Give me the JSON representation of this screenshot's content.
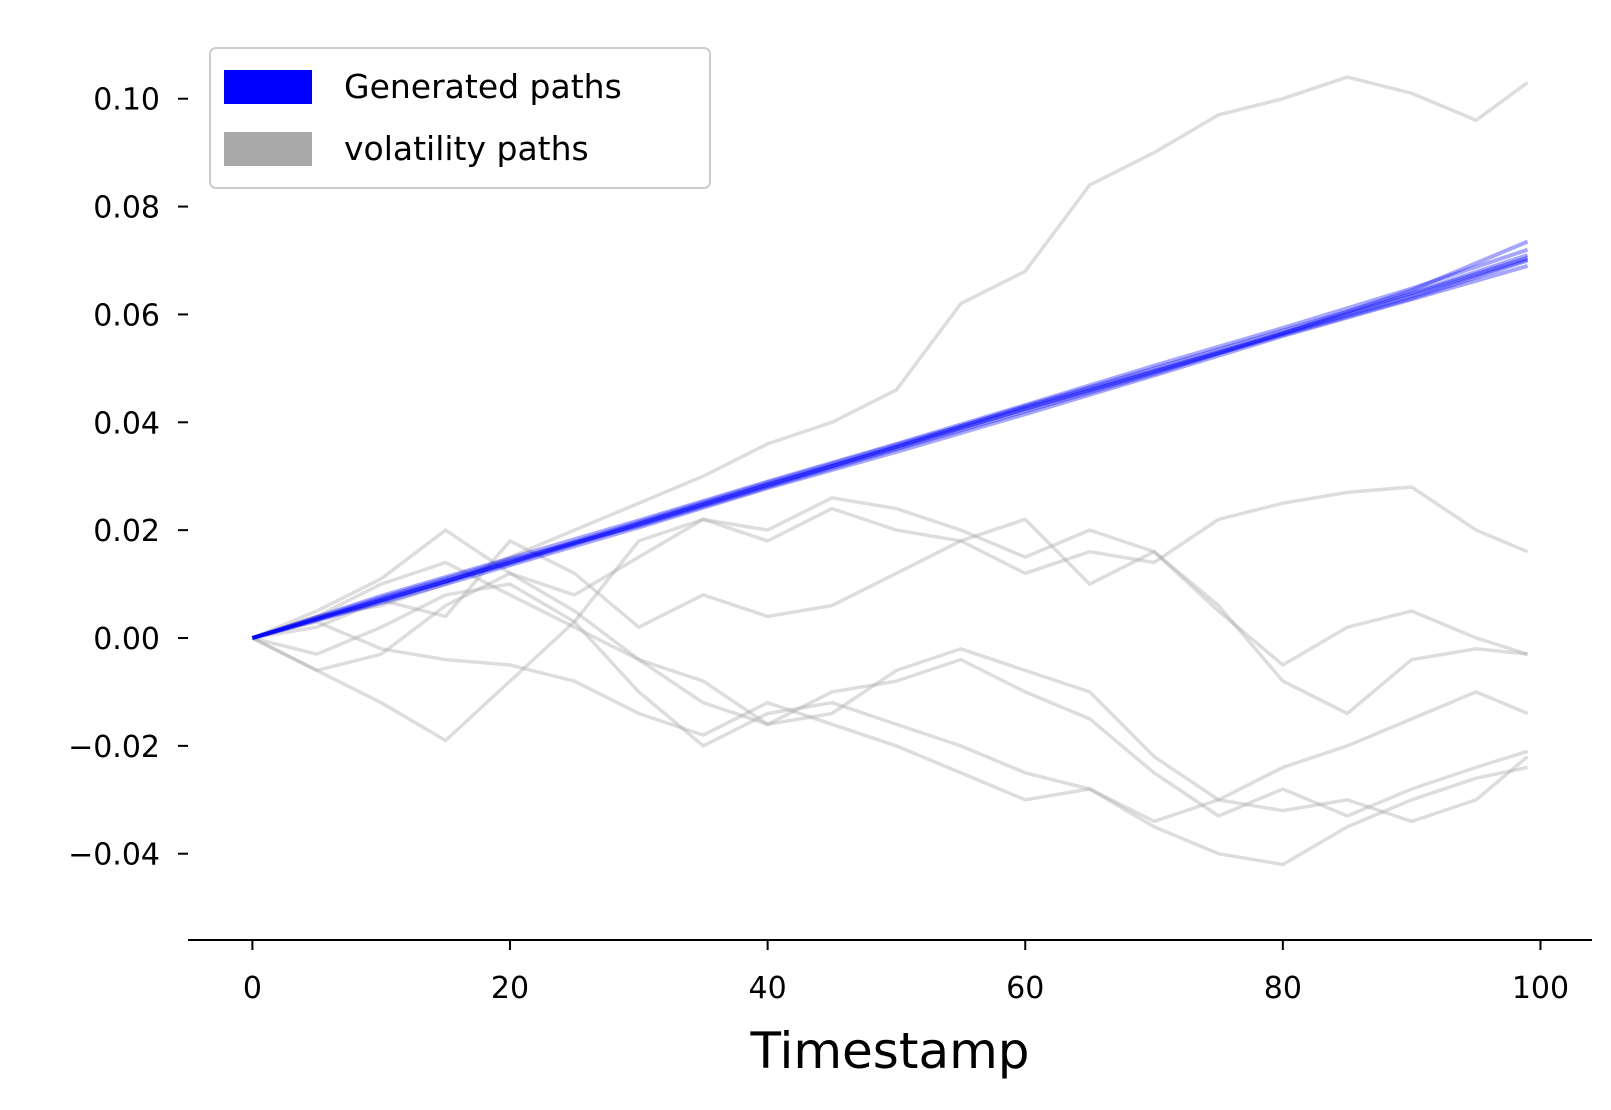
{
  "chart_data": {
    "type": "line",
    "title": "",
    "xlabel": "Timestamp",
    "ylabel": "",
    "xlim": [
      -5,
      104
    ],
    "ylim": [
      -0.056,
      0.112
    ],
    "xticks": [
      0,
      20,
      40,
      60,
      80,
      100
    ],
    "xtick_labels": [
      "0",
      "20",
      "40",
      "60",
      "80",
      "100"
    ],
    "yticks": [
      -0.04,
      -0.02,
      0.0,
      0.02,
      0.04,
      0.06,
      0.08,
      0.1
    ],
    "ytick_labels": [
      "−0.04",
      "−0.02",
      "0.00",
      "0.02",
      "0.04",
      "0.06",
      "0.08",
      "0.10"
    ],
    "grid": false,
    "legend": {
      "position": "top-left",
      "entries": [
        {
          "label": "Generated paths",
          "color": "#0000ff"
        },
        {
          "label": "volatility paths",
          "color": "#a9a9a9"
        }
      ]
    },
    "colors": {
      "generated": "#0000ff",
      "volatility": "#a9a9a9"
    },
    "generated_paths": [
      {
        "x": [
          0,
          10,
          20,
          30,
          40,
          50,
          60,
          70,
          80,
          90,
          99
        ],
        "y": [
          0,
          0.0072,
          0.014,
          0.0212,
          0.0285,
          0.0352,
          0.0425,
          0.0493,
          0.0562,
          0.063,
          0.07
        ]
      },
      {
        "x": [
          0,
          10,
          20,
          30,
          40,
          50,
          60,
          70,
          80,
          90,
          99
        ],
        "y": [
          0,
          0.0065,
          0.0135,
          0.0205,
          0.0278,
          0.0345,
          0.0415,
          0.0487,
          0.056,
          0.0628,
          0.069
        ]
      },
      {
        "x": [
          0,
          10,
          20,
          30,
          40,
          50,
          60,
          70,
          80,
          90,
          99
        ],
        "y": [
          0,
          0.0078,
          0.0148,
          0.0218,
          0.029,
          0.036,
          0.0432,
          0.0505,
          0.0575,
          0.0648,
          0.072
        ]
      },
      {
        "x": [
          0,
          10,
          20,
          30,
          40,
          50,
          60,
          70,
          80,
          90,
          99
        ],
        "y": [
          0,
          0.007,
          0.0138,
          0.021,
          0.0282,
          0.0355,
          0.043,
          0.05,
          0.057,
          0.064,
          0.071
        ]
      },
      {
        "x": [
          0,
          10,
          20,
          30,
          40,
          50,
          60,
          70,
          80,
          90,
          99
        ],
        "y": [
          0,
          0.0068,
          0.0142,
          0.0215,
          0.0288,
          0.0358,
          0.0428,
          0.0496,
          0.0566,
          0.0638,
          0.0705
        ]
      },
      {
        "x": [
          0,
          10,
          20,
          30,
          40,
          50,
          60,
          70,
          80,
          90,
          99
        ],
        "y": [
          0,
          0.0075,
          0.0145,
          0.0208,
          0.028,
          0.035,
          0.042,
          0.049,
          0.0565,
          0.0645,
          0.0735
        ]
      },
      {
        "x": [
          0,
          10,
          20,
          30,
          40,
          50,
          60,
          70,
          80,
          90,
          99
        ],
        "y": [
          0,
          0.007,
          0.014,
          0.0212,
          0.0284,
          0.0354,
          0.0424,
          0.0494,
          0.0564,
          0.0634,
          0.0702
        ]
      }
    ],
    "volatility_paths": [
      {
        "x": [
          0,
          5,
          10,
          15,
          20,
          25,
          30,
          35,
          40,
          45,
          50,
          55,
          60,
          65,
          70,
          75,
          80,
          85,
          90,
          95,
          99
        ],
        "y": [
          0,
          0.004,
          0.006,
          0.01,
          0.015,
          0.02,
          0.025,
          0.03,
          0.036,
          0.04,
          0.046,
          0.062,
          0.068,
          0.084,
          0.09,
          0.097,
          0.1,
          0.104,
          0.101,
          0.096,
          0.103
        ]
      },
      {
        "x": [
          0,
          5,
          10,
          15,
          20,
          25,
          30,
          35,
          40,
          45,
          50,
          55,
          60,
          65,
          70,
          75,
          80,
          85,
          90,
          95,
          99
        ],
        "y": [
          0,
          0.005,
          0.011,
          0.02,
          0.012,
          0.008,
          0.015,
          0.022,
          0.018,
          0.024,
          0.02,
          0.018,
          0.012,
          0.016,
          0.014,
          0.022,
          0.025,
          0.027,
          0.028,
          0.02,
          0.016
        ]
      },
      {
        "x": [
          0,
          5,
          10,
          15,
          20,
          25,
          30,
          35,
          40,
          45,
          50,
          55,
          60,
          65,
          70,
          75,
          80,
          85,
          90,
          95,
          99
        ],
        "y": [
          0,
          -0.006,
          -0.012,
          -0.019,
          -0.008,
          0.003,
          0.018,
          0.022,
          0.02,
          0.026,
          0.024,
          0.02,
          0.015,
          0.02,
          0.016,
          0.005,
          -0.005,
          0.002,
          0.005,
          0.0,
          -0.003
        ]
      },
      {
        "x": [
          0,
          5,
          10,
          15,
          20,
          25,
          30,
          35,
          40,
          45,
          50,
          55,
          60,
          65,
          70,
          75,
          80,
          85,
          90,
          95,
          99
        ],
        "y": [
          0,
          0.003,
          -0.002,
          -0.004,
          -0.005,
          -0.008,
          -0.014,
          -0.018,
          -0.012,
          -0.016,
          -0.02,
          -0.025,
          -0.03,
          -0.028,
          -0.035,
          -0.04,
          -0.042,
          -0.035,
          -0.03,
          -0.026,
          -0.024
        ]
      },
      {
        "x": [
          0,
          5,
          10,
          15,
          20,
          25,
          30,
          35,
          40,
          45,
          50,
          55,
          60,
          65,
          70,
          75,
          80,
          85,
          90,
          95,
          99
        ],
        "y": [
          0,
          -0.006,
          -0.003,
          0.006,
          0.012,
          0.005,
          -0.004,
          -0.012,
          -0.016,
          -0.01,
          -0.008,
          -0.004,
          -0.01,
          -0.015,
          -0.025,
          -0.033,
          -0.028,
          -0.033,
          -0.028,
          -0.024,
          -0.021
        ]
      },
      {
        "x": [
          0,
          5,
          10,
          15,
          20,
          25,
          30,
          35,
          40,
          45,
          50,
          55,
          60,
          65,
          70,
          75,
          80,
          85,
          90,
          95,
          99
        ],
        "y": [
          0,
          -0.003,
          0.002,
          0.008,
          0.01,
          0.003,
          -0.01,
          -0.02,
          -0.014,
          -0.012,
          -0.016,
          -0.02,
          -0.025,
          -0.028,
          -0.034,
          -0.03,
          -0.024,
          -0.02,
          -0.015,
          -0.01,
          -0.014
        ]
      },
      {
        "x": [
          0,
          5,
          10,
          15,
          20,
          25,
          30,
          35,
          40,
          45,
          50,
          55,
          60,
          65,
          70,
          75,
          80,
          85,
          90,
          95,
          99
        ],
        "y": [
          0,
          0.002,
          0.007,
          0.004,
          0.018,
          0.012,
          0.002,
          0.008,
          0.004,
          0.006,
          0.012,
          0.018,
          0.022,
          0.01,
          0.016,
          0.006,
          -0.008,
          -0.014,
          -0.004,
          -0.002,
          -0.003
        ]
      },
      {
        "x": [
          0,
          5,
          10,
          15,
          20,
          25,
          30,
          35,
          40,
          45,
          50,
          55,
          60,
          65,
          70,
          75,
          80,
          85,
          90,
          95,
          99
        ],
        "y": [
          0,
          0.004,
          0.01,
          0.014,
          0.008,
          0.002,
          -0.004,
          -0.008,
          -0.016,
          -0.014,
          -0.006,
          -0.002,
          -0.006,
          -0.01,
          -0.022,
          -0.03,
          -0.032,
          -0.03,
          -0.034,
          -0.03,
          -0.022
        ]
      }
    ]
  }
}
